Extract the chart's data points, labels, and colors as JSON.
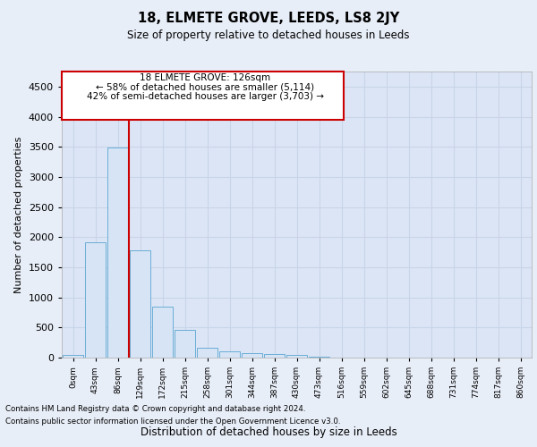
{
  "title1": "18, ELMETE GROVE, LEEDS, LS8 2JY",
  "title2": "Size of property relative to detached houses in Leeds",
  "xlabel": "Distribution of detached houses by size in Leeds",
  "ylabel": "Number of detached properties",
  "bar_color": "#d6e4f5",
  "bar_edge_color": "#6baed6",
  "vline_color": "#cc0000",
  "vline_x": 2.5,
  "annotation_line1": "18 ELMETE GROVE: 126sqm",
  "annotation_line2": "← 58% of detached houses are smaller (5,114)",
  "annotation_line3": "42% of semi-detached houses are larger (3,703) →",
  "annotation_box_color": "#ffffff",
  "annotation_box_edge": "#cc0000",
  "categories": [
    "0sqm",
    "43sqm",
    "86sqm",
    "129sqm",
    "172sqm",
    "215sqm",
    "258sqm",
    "301sqm",
    "344sqm",
    "387sqm",
    "430sqm",
    "473sqm",
    "516sqm",
    "559sqm",
    "602sqm",
    "645sqm",
    "688sqm",
    "731sqm",
    "774sqm",
    "817sqm",
    "860sqm"
  ],
  "values": [
    45,
    1920,
    3490,
    1780,
    850,
    455,
    160,
    100,
    70,
    55,
    45,
    20,
    0,
    0,
    0,
    0,
    0,
    0,
    0,
    0,
    0
  ],
  "ylim": [
    0,
    4750
  ],
  "yticks": [
    0,
    500,
    1000,
    1500,
    2000,
    2500,
    3000,
    3500,
    4000,
    4500
  ],
  "footer1": "Contains HM Land Registry data © Crown copyright and database right 2024.",
  "footer2": "Contains public sector information licensed under the Open Government Licence v3.0.",
  "background_color": "#e8eef8",
  "plot_bg_color": "#dce5f5",
  "grid_color": "#c8d4e8"
}
